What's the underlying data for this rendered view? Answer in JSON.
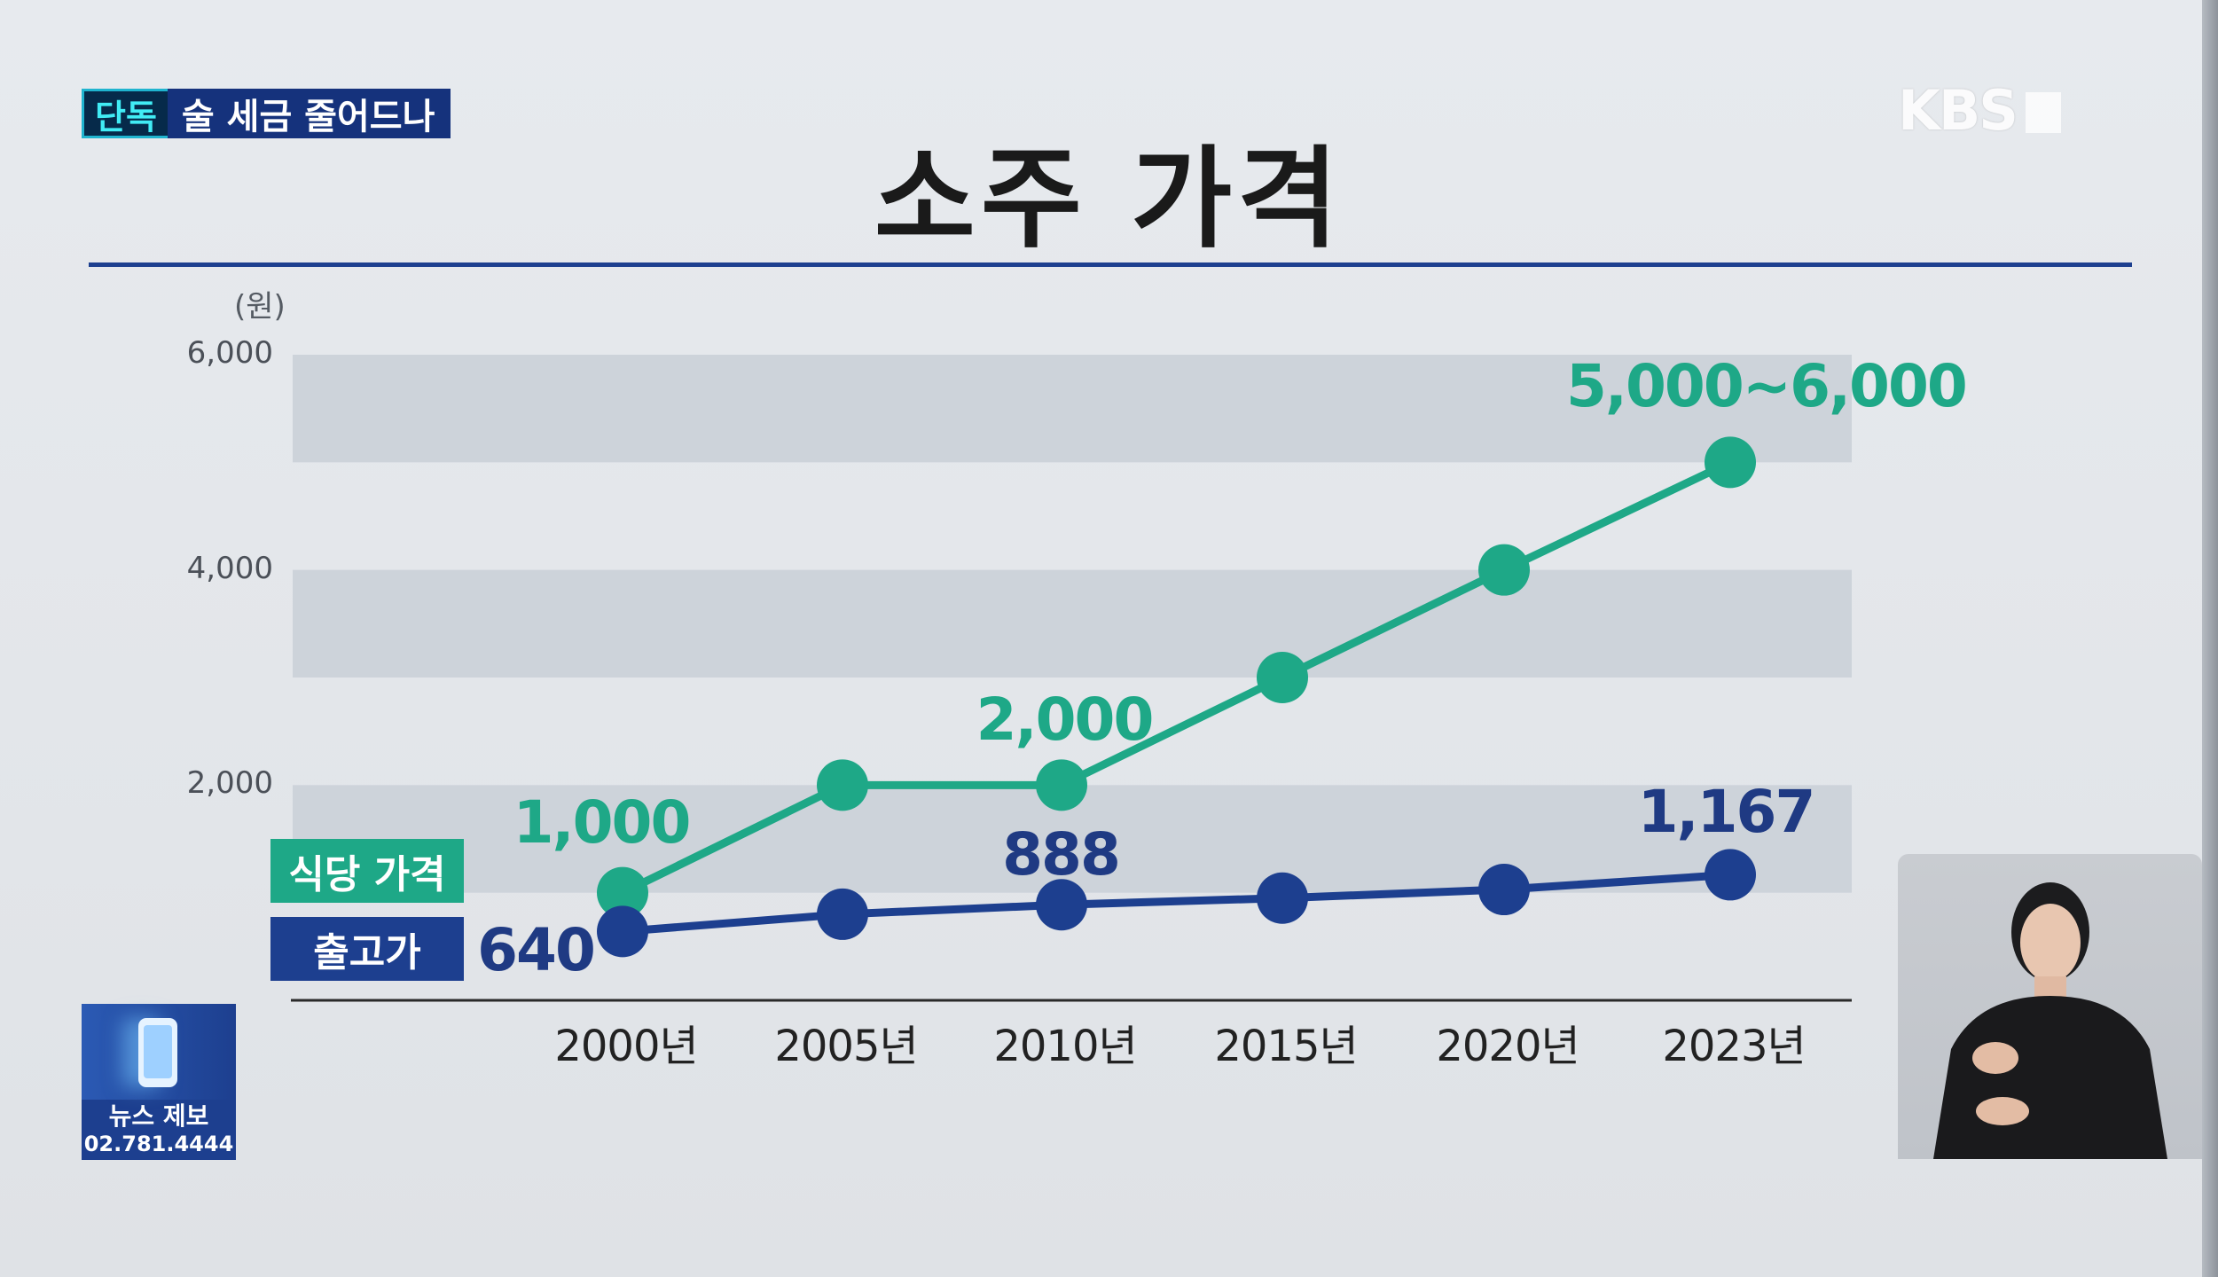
{
  "caption": {
    "tag": "단독",
    "title": "술 세금 줄어드나"
  },
  "broadcaster_logo": "KBS",
  "chart_data": {
    "type": "line",
    "title": "소주 가격",
    "unit": "(원)",
    "ylim": [
      0,
      6000
    ],
    "y_ticks": [
      "6,000",
      "4,000",
      "2,000"
    ],
    "y_tick_values": [
      6000,
      4000,
      2000
    ],
    "categories": [
      "2000년",
      "2005년",
      "2010년",
      "2015년",
      "2020년",
      "2023년"
    ],
    "grid": "horizontal bands",
    "legend_placement": "left",
    "series": [
      {
        "name": "식당 가격",
        "color": "#1ea887",
        "values": [
          1000,
          2000,
          2000,
          3000,
          4000,
          5000
        ],
        "labels": [
          "1,000",
          "",
          "2,000",
          "",
          "",
          "5,000~6,000"
        ]
      },
      {
        "name": "출고가",
        "color": "#1d3f8f",
        "values": [
          640,
          800,
          888,
          950,
          1030,
          1167
        ],
        "labels": [
          "640",
          "",
          "888",
          "",
          "",
          "1,167"
        ]
      }
    ]
  },
  "news_tip": {
    "label": "뉴스 제보",
    "number": "02.781.4444",
    "icon": "phone-icon"
  }
}
